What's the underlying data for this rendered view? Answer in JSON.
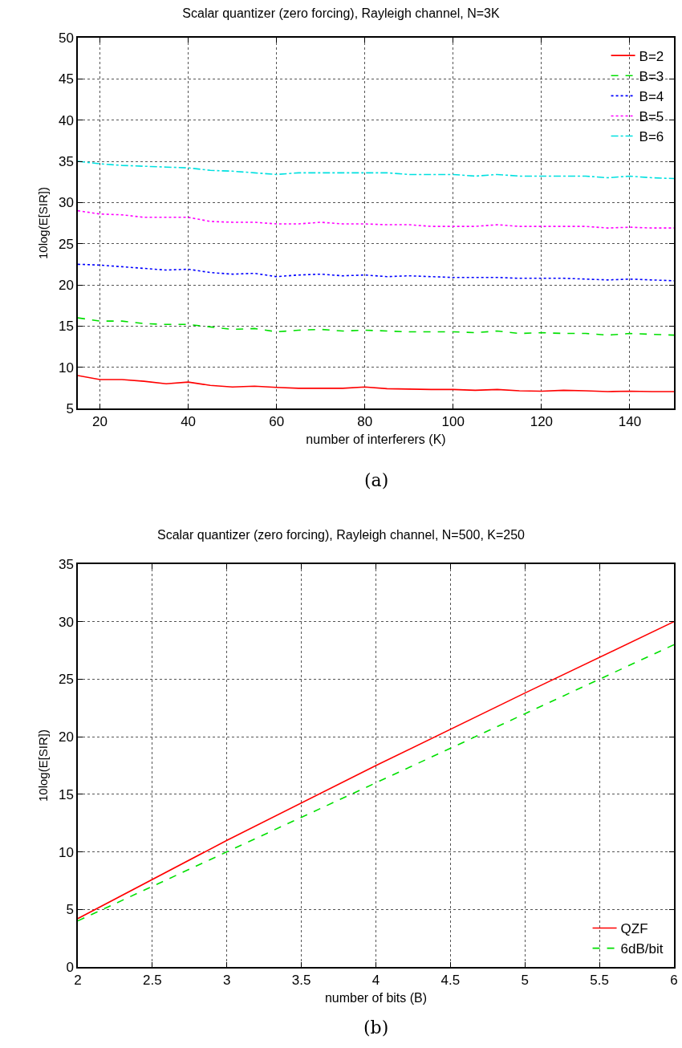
{
  "chart_data": [
    {
      "type": "line",
      "title": "Scalar quantizer (zero forcing), Rayleigh channel, N=3K",
      "xlabel": "number of interferers (K)",
      "ylabel": "10log(E[SIR])",
      "x": [
        15,
        20,
        25,
        30,
        35,
        40,
        45,
        50,
        55,
        60,
        65,
        70,
        75,
        80,
        85,
        90,
        95,
        100,
        105,
        110,
        115,
        120,
        125,
        130,
        135,
        140,
        145,
        150
      ],
      "series": [
        {
          "name": "B=2",
          "color": "#ff0000",
          "line_style": "solid",
          "values": [
            9.0,
            8.5,
            8.5,
            8.3,
            8.0,
            8.2,
            7.8,
            7.6,
            7.7,
            7.55,
            7.45,
            7.45,
            7.45,
            7.6,
            7.4,
            7.35,
            7.3,
            7.3,
            7.2,
            7.3,
            7.15,
            7.1,
            7.2,
            7.15,
            7.05,
            7.1,
            7.05,
            7.05
          ]
        },
        {
          "name": "B=3",
          "color": "#00e000",
          "line_style": "dashed",
          "values": [
            16.0,
            15.6,
            15.6,
            15.3,
            15.2,
            15.2,
            14.9,
            14.6,
            14.7,
            14.3,
            14.5,
            14.6,
            14.4,
            14.5,
            14.4,
            14.3,
            14.3,
            14.3,
            14.2,
            14.4,
            14.1,
            14.2,
            14.1,
            14.1,
            13.9,
            14.1,
            14.0,
            13.9
          ]
        },
        {
          "name": "B=4",
          "color": "#0000ff",
          "line_style": "dotted",
          "values": [
            22.5,
            22.4,
            22.2,
            22.0,
            21.8,
            21.9,
            21.5,
            21.3,
            21.4,
            21.0,
            21.2,
            21.3,
            21.1,
            21.2,
            21.0,
            21.1,
            21.0,
            20.9,
            20.9,
            20.9,
            20.8,
            20.8,
            20.8,
            20.7,
            20.6,
            20.7,
            20.6,
            20.5
          ]
        },
        {
          "name": "B=5",
          "color": "#ff00ff",
          "line_style": "dotted",
          "values": [
            29.0,
            28.6,
            28.5,
            28.2,
            28.2,
            28.2,
            27.7,
            27.6,
            27.6,
            27.4,
            27.4,
            27.6,
            27.4,
            27.4,
            27.3,
            27.3,
            27.1,
            27.1,
            27.1,
            27.3,
            27.1,
            27.1,
            27.1,
            27.1,
            26.9,
            27.0,
            26.9,
            26.9
          ]
        },
        {
          "name": "B=6",
          "color": "#00e0e0",
          "line_style": "dashdot",
          "values": [
            35.0,
            34.7,
            34.5,
            34.4,
            34.3,
            34.2,
            33.9,
            33.8,
            33.6,
            33.4,
            33.6,
            33.6,
            33.6,
            33.6,
            33.6,
            33.4,
            33.4,
            33.4,
            33.2,
            33.4,
            33.2,
            33.2,
            33.2,
            33.2,
            33.0,
            33.2,
            33.0,
            32.9
          ]
        }
      ],
      "xlim": [
        15,
        150
      ],
      "xticks": [
        20,
        40,
        60,
        80,
        100,
        120,
        140
      ],
      "ylim": [
        5,
        50
      ],
      "yticks": [
        5,
        10,
        15,
        20,
        25,
        30,
        35,
        40,
        45,
        50
      ],
      "grid": true,
      "legend": "top right",
      "annotations": [
        "(a)"
      ]
    },
    {
      "type": "line",
      "title": "Scalar quantizer (zero forcing), Rayleigh channel, N=500, K=250",
      "xlabel": "number of bits (B)",
      "ylabel": "10log(E[SIR])",
      "x": [
        2,
        3,
        4,
        5,
        6
      ],
      "series": [
        {
          "name": "QZF",
          "color": "#ff0000",
          "line_style": "solid",
          "values": [
            4.2,
            11.0,
            17.5,
            23.8,
            30.0
          ]
        },
        {
          "name": "6dB/bit",
          "color": "#00e000",
          "line_style": "dashed",
          "values": [
            4.0,
            10.0,
            16.0,
            22.0,
            28.0
          ]
        }
      ],
      "xlim": [
        2,
        6
      ],
      "xticks": [
        2,
        2.5,
        3,
        3.5,
        4,
        4.5,
        5,
        5.5,
        6
      ],
      "ylim": [
        0,
        35
      ],
      "yticks": [
        0,
        5,
        10,
        15,
        20,
        25,
        30,
        35
      ],
      "grid": true,
      "legend": "bottom right",
      "annotations": [
        "(b)"
      ]
    }
  ]
}
